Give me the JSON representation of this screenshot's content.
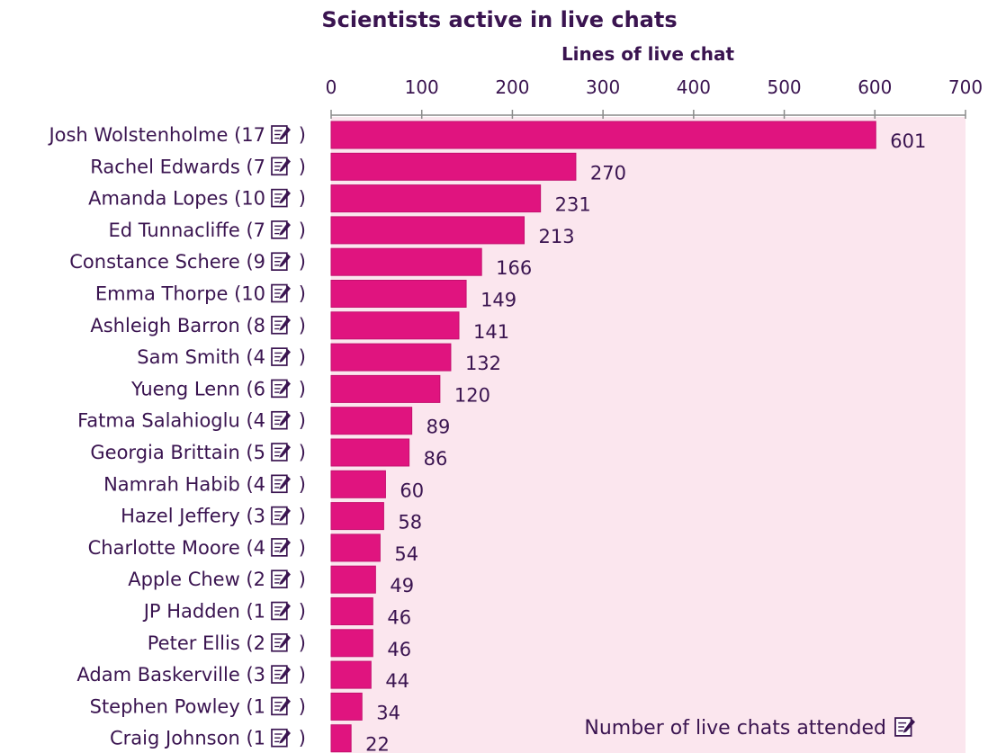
{
  "chart_data": {
    "type": "bar",
    "orientation": "horizontal",
    "title": "Scientists active in live chats",
    "xlabel": "Lines of live chat",
    "ylabel": "",
    "xlim": [
      0,
      700
    ],
    "xticks": [
      0,
      100,
      200,
      300,
      400,
      500,
      600,
      700
    ],
    "axis_position": "top",
    "categories": [
      "Josh Wolstenholme (17",
      "Rachel Edwards (7",
      "Amanda Lopes (10",
      "Ed Tunnacliffe (7",
      "Constance Schere (9",
      "Emma Thorpe (10",
      "Ashleigh Barron (8",
      "Sam Smith (4",
      "Yueng Lenn (6",
      "Fatma Salahioglu (4",
      "Georgia Brittain (5",
      "Namrah Habib (4",
      "Hazel Jeffery (3",
      "Charlotte Moore (4",
      "Apple Chew (2",
      "JP Hadden (1",
      "Peter Ellis (2",
      "Adam Baskerville (3",
      "Stephen Powley (1",
      "Craig Johnson (1"
    ],
    "label_suffix": ")",
    "values": [
      601,
      270,
      231,
      213,
      166,
      149,
      141,
      132,
      120,
      89,
      86,
      60,
      58,
      54,
      49,
      46,
      46,
      44,
      34,
      22
    ],
    "annotation": "Number of live chats attended",
    "annotation_icon": "notepad-icon",
    "colors": {
      "bar": "#e0147f",
      "bar_stroke": "#c40f6e",
      "plot_background": "#fbe6ee",
      "text": "#3a1450",
      "axis": "#8a8a8a"
    },
    "grid": false,
    "legend": "none"
  }
}
